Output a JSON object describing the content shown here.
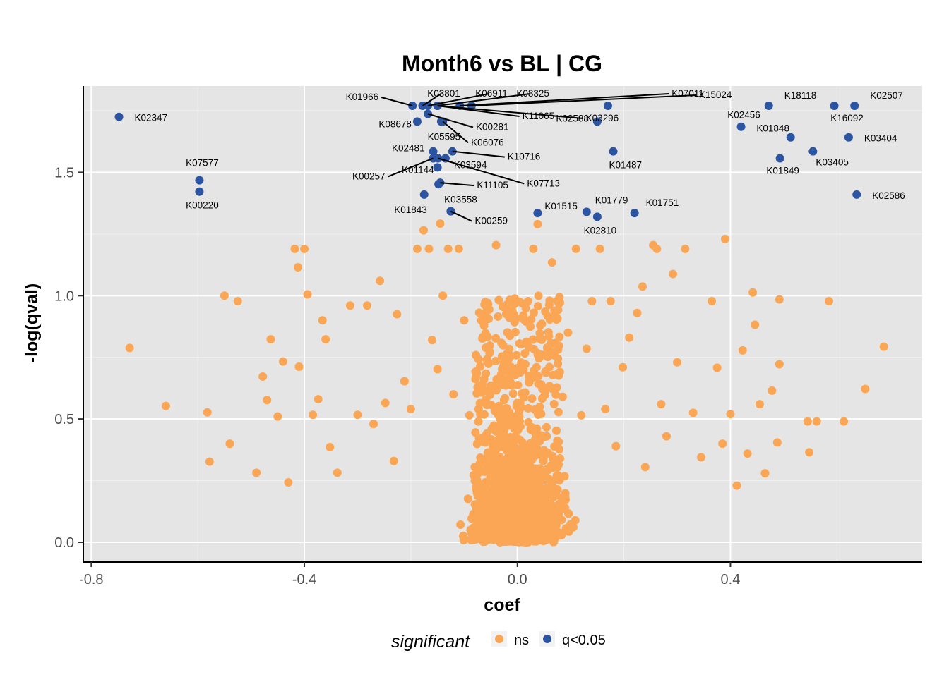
{
  "chart_data": {
    "type": "scatter",
    "title": "Month6 vs BL | CG",
    "xlabel": "coef",
    "ylabel": "-log(qval)",
    "xlim": [
      -0.815,
      0.76
    ],
    "ylim": [
      -0.08,
      1.85
    ],
    "x_ticks": [
      -0.8,
      -0.4,
      0.0,
      0.4
    ],
    "x_tick_labels": [
      "-0.8",
      "-0.4",
      "0.0",
      "0.4"
    ],
    "y_ticks": [
      0.0,
      0.5,
      1.0,
      1.5
    ],
    "y_tick_labels": [
      "0.0",
      "0.5",
      "1.0",
      "1.5"
    ],
    "grid": true,
    "legend": {
      "position": "bottom",
      "title": "significant",
      "entries": [
        {
          "label": "ns",
          "color": "#FBA654"
        },
        {
          "label": "q<0.05",
          "color": "#2B55A3"
        }
      ]
    },
    "colors": {
      "ns": "#FBA654",
      "sig": "#2B55A3",
      "panel": "#E5E5E5",
      "grid": "#F2F2F2"
    },
    "series": [
      {
        "name": "q<0.05",
        "points": [
          {
            "x": -0.748,
            "y": 1.725,
            "label": "K02347"
          },
          {
            "x": -0.597,
            "y": 1.468,
            "label": "K07577"
          },
          {
            "x": -0.597,
            "y": 1.422,
            "label": "K00220"
          },
          {
            "x": -0.197,
            "y": 1.77,
            "label": "K01966"
          },
          {
            "x": -0.178,
            "y": 1.77,
            "label": "K03801"
          },
          {
            "x": -0.168,
            "y": 1.77,
            "label": "K06911"
          },
          {
            "x": -0.15,
            "y": 1.77,
            "label": "K08325"
          },
          {
            "x": -0.108,
            "y": 1.77,
            "label": "K07011"
          },
          {
            "x": -0.086,
            "y": 1.77,
            "label": "K15024"
          },
          {
            "x": -0.168,
            "y": 1.737,
            "label": "K00281"
          },
          {
            "x": -0.15,
            "y": 1.77,
            "label": "K11065"
          },
          {
            "x": -0.15,
            "y": 1.77,
            "label": "K03296"
          },
          {
            "x": -0.188,
            "y": 1.706,
            "label": "K08678"
          },
          {
            "x": -0.143,
            "y": 1.706,
            "label": "K05595"
          },
          {
            "x": -0.14,
            "y": 1.706,
            "label": "K06076"
          },
          {
            "x": -0.158,
            "y": 1.585,
            "label": "K02481"
          },
          {
            "x": -0.122,
            "y": 1.585,
            "label": "K10716"
          },
          {
            "x": -0.158,
            "y": 1.557,
            "label": "K00257"
          },
          {
            "x": -0.135,
            "y": 1.557,
            "label": "K03594"
          },
          {
            "x": -0.149,
            "y": 1.557,
            "label": "K07713"
          },
          {
            "x": -0.15,
            "y": 1.52,
            "label": "K01144"
          },
          {
            "x": -0.145,
            "y": 1.458,
            "label": "K11105"
          },
          {
            "x": -0.148,
            "y": 1.452,
            "label": ""
          },
          {
            "x": -0.175,
            "y": 1.41,
            "label": "K01843"
          },
          {
            "x": -0.125,
            "y": 1.342,
            "label": "K03558"
          },
          {
            "x": -0.125,
            "y": 1.342,
            "label": "K00259"
          },
          {
            "x": 0.038,
            "y": 1.335,
            "label": "K01515"
          },
          {
            "x": 0.13,
            "y": 1.34,
            "label": "K01779"
          },
          {
            "x": 0.15,
            "y": 1.32,
            "label": "K02810"
          },
          {
            "x": 0.22,
            "y": 1.335,
            "label": "K01751"
          },
          {
            "x": 0.17,
            "y": 1.77,
            "label": ""
          },
          {
            "x": 0.15,
            "y": 1.706,
            "label": "K02588"
          },
          {
            "x": 0.18,
            "y": 1.585,
            "label": "K01487"
          },
          {
            "x": 0.42,
            "y": 1.685,
            "label": "K02456"
          },
          {
            "x": 0.472,
            "y": 1.77,
            "label": "K18118"
          },
          {
            "x": 0.513,
            "y": 1.642,
            "label": "K01848"
          },
          {
            "x": 0.493,
            "y": 1.557,
            "label": "K01849"
          },
          {
            "x": 0.555,
            "y": 1.585,
            "label": "K03405"
          },
          {
            "x": 0.595,
            "y": 1.77,
            "label": "K16092"
          },
          {
            "x": 0.633,
            "y": 1.77,
            "label": "K02507"
          },
          {
            "x": 0.622,
            "y": 1.642,
            "label": "K03404"
          },
          {
            "x": 0.637,
            "y": 1.41,
            "label": "K02586"
          }
        ]
      },
      {
        "name": "ns",
        "points": [
          {
            "x": -0.728,
            "y": 0.788
          },
          {
            "x": -0.66,
            "y": 0.553
          },
          {
            "x": -0.582,
            "y": 0.527
          },
          {
            "x": -0.578,
            "y": 0.327
          },
          {
            "x": -0.55,
            "y": 1.0
          },
          {
            "x": -0.54,
            "y": 0.4
          },
          {
            "x": -0.525,
            "y": 0.978
          },
          {
            "x": -0.49,
            "y": 0.282
          },
          {
            "x": -0.478,
            "y": 0.672
          },
          {
            "x": -0.47,
            "y": 0.577
          },
          {
            "x": -0.463,
            "y": 0.823
          },
          {
            "x": -0.45,
            "y": 0.51
          },
          {
            "x": -0.44,
            "y": 0.733
          },
          {
            "x": -0.43,
            "y": 0.243
          },
          {
            "x": -0.418,
            "y": 1.19
          },
          {
            "x": -0.41,
            "y": 0.712
          },
          {
            "x": -0.4,
            "y": 1.19
          },
          {
            "x": -0.394,
            "y": 1.005
          },
          {
            "x": -0.412,
            "y": 1.115
          },
          {
            "x": -0.384,
            "y": 0.517
          },
          {
            "x": -0.374,
            "y": 0.58
          },
          {
            "x": -0.366,
            "y": 0.9
          },
          {
            "x": -0.36,
            "y": 0.823
          },
          {
            "x": -0.352,
            "y": 0.386
          },
          {
            "x": -0.338,
            "y": 0.282
          },
          {
            "x": -0.314,
            "y": 0.96
          },
          {
            "x": -0.3,
            "y": 0.517
          },
          {
            "x": -0.282,
            "y": 0.96
          },
          {
            "x": -0.27,
            "y": 0.48
          },
          {
            "x": -0.258,
            "y": 1.06
          },
          {
            "x": -0.248,
            "y": 0.565
          },
          {
            "x": -0.232,
            "y": 0.33
          },
          {
            "x": -0.226,
            "y": 0.925
          },
          {
            "x": -0.212,
            "y": 0.653
          },
          {
            "x": -0.2,
            "y": 0.54
          },
          {
            "x": -0.188,
            "y": 1.19
          },
          {
            "x": -0.176,
            "y": 1.265
          },
          {
            "x": -0.166,
            "y": 1.19
          },
          {
            "x": -0.16,
            "y": 0.82
          },
          {
            "x": -0.15,
            "y": 0.702
          },
          {
            "x": -0.145,
            "y": 1.292
          },
          {
            "x": -0.14,
            "y": 1.0
          },
          {
            "x": -0.13,
            "y": 1.19
          },
          {
            "x": -0.12,
            "y": 0.6
          },
          {
            "x": -0.11,
            "y": 1.19
          },
          {
            "x": -0.1,
            "y": 0.9
          },
          {
            "x": -0.09,
            "y": 0.515
          },
          {
            "x": -0.08,
            "y": 0.305
          },
          {
            "x": -0.07,
            "y": 0.713
          },
          {
            "x": -0.06,
            "y": 0.432
          },
          {
            "x": -0.04,
            "y": 1.205
          },
          {
            "x": -0.03,
            "y": 0.808
          },
          {
            "x": -0.02,
            "y": 0.52
          },
          {
            "x": -0.01,
            "y": 0.26
          },
          {
            "x": 0.0,
            "y": 0.17
          },
          {
            "x": 0.01,
            "y": 0.725
          },
          {
            "x": 0.02,
            "y": 0.978
          },
          {
            "x": 0.03,
            "y": 1.19
          },
          {
            "x": 0.038,
            "y": 1.29
          },
          {
            "x": 0.045,
            "y": 0.64
          },
          {
            "x": 0.055,
            "y": 0.43
          },
          {
            "x": 0.065,
            "y": 1.135
          },
          {
            "x": 0.075,
            "y": 0.978
          },
          {
            "x": 0.085,
            "y": 0.59
          },
          {
            "x": 0.095,
            "y": 0.85
          },
          {
            "x": 0.11,
            "y": 1.19
          },
          {
            "x": 0.12,
            "y": 0.515
          },
          {
            "x": 0.13,
            "y": 0.785
          },
          {
            "x": 0.14,
            "y": 0.978
          },
          {
            "x": 0.155,
            "y": 1.19
          },
          {
            "x": 0.165,
            "y": 0.54
          },
          {
            "x": 0.175,
            "y": 0.978
          },
          {
            "x": 0.185,
            "y": 0.39
          },
          {
            "x": 0.198,
            "y": 0.71
          },
          {
            "x": 0.21,
            "y": 0.83
          },
          {
            "x": 0.225,
            "y": 0.93
          },
          {
            "x": 0.235,
            "y": 1.037
          },
          {
            "x": 0.24,
            "y": 0.305
          },
          {
            "x": 0.255,
            "y": 1.205
          },
          {
            "x": 0.262,
            "y": 1.19
          },
          {
            "x": 0.27,
            "y": 0.56
          },
          {
            "x": 0.28,
            "y": 0.43
          },
          {
            "x": 0.292,
            "y": 1.088
          },
          {
            "x": 0.3,
            "y": 0.73
          },
          {
            "x": 0.315,
            "y": 1.19
          },
          {
            "x": 0.33,
            "y": 0.525
          },
          {
            "x": 0.345,
            "y": 0.345
          },
          {
            "x": 0.365,
            "y": 0.978
          },
          {
            "x": 0.375,
            "y": 0.708
          },
          {
            "x": 0.385,
            "y": 0.4
          },
          {
            "x": 0.39,
            "y": 1.23
          },
          {
            "x": 0.4,
            "y": 0.52
          },
          {
            "x": 0.412,
            "y": 0.23
          },
          {
            "x": 0.423,
            "y": 0.778
          },
          {
            "x": 0.432,
            "y": 0.36
          },
          {
            "x": 0.442,
            "y": 1.013
          },
          {
            "x": 0.446,
            "y": 0.882
          },
          {
            "x": 0.455,
            "y": 0.56
          },
          {
            "x": 0.465,
            "y": 0.28
          },
          {
            "x": 0.478,
            "y": 0.615
          },
          {
            "x": 0.488,
            "y": 0.405
          },
          {
            "x": 0.492,
            "y": 0.985
          },
          {
            "x": 0.492,
            "y": 0.722
          },
          {
            "x": 0.545,
            "y": 0.49
          },
          {
            "x": 0.548,
            "y": 0.365
          },
          {
            "x": 0.562,
            "y": 0.49
          },
          {
            "x": 0.585,
            "y": 0.978
          },
          {
            "x": 0.613,
            "y": 0.49
          },
          {
            "x": 0.653,
            "y": 0.622
          },
          {
            "x": 0.688,
            "y": 0.793
          }
        ]
      }
    ]
  },
  "legend": {
    "title": "significant",
    "ns": "ns",
    "sig": "q<0.05"
  }
}
